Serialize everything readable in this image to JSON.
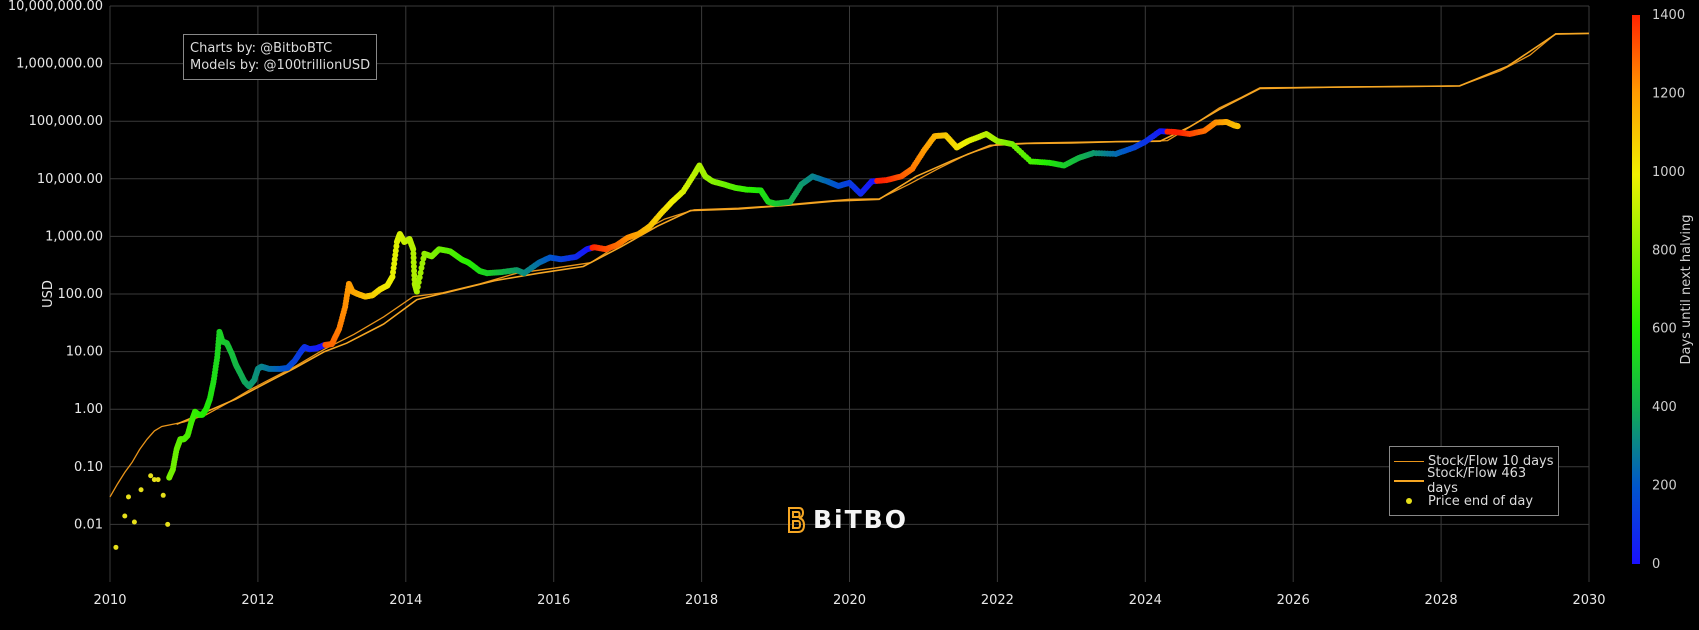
{
  "credits": {
    "line1": "Charts by: @BitboBTC",
    "line2": "Models by: @100trillionUSD"
  },
  "brand": {
    "name": "BiTBO"
  },
  "legend": {
    "items": [
      {
        "label": "Stock/Flow 10 days",
        "symbol": "line-thin",
        "color": "#e8941a"
      },
      {
        "label": "Stock/Flow 463 days",
        "symbol": "line",
        "color": "#f5a623"
      },
      {
        "label": "Price end of day",
        "symbol": "dot",
        "color": "#e6df1a"
      }
    ]
  },
  "chart_data": {
    "type": "scatter",
    "title": "",
    "ylabel": "USD",
    "xlabel": "",
    "yscale": "log",
    "ylim": [
      0.001,
      10000000
    ],
    "xlim": [
      2010,
      2030
    ],
    "y_ticks": [
      "0.01",
      "0.10",
      "1.00",
      "10.00",
      "100.00",
      "1,000.00",
      "10,000.00",
      "100,000.00",
      "1,000,000.00",
      "10,000,000.00"
    ],
    "x_ticks": [
      "2010",
      "2012",
      "2014",
      "2016",
      "2018",
      "2020",
      "2022",
      "2024",
      "2026",
      "2028",
      "2030"
    ],
    "colorbar": {
      "title": "Days until next halving",
      "range": [
        0,
        1400
      ],
      "ticks": [
        "0",
        "200",
        "400",
        "600",
        "800",
        "1000",
        "1200",
        "1400"
      ],
      "colors": [
        "#1a10ff",
        "#0055cc",
        "#11aa55",
        "#22ee00",
        "#88f000",
        "#f0f000",
        "#ff9900",
        "#ff2200"
      ]
    },
    "grid": true,
    "series": [
      {
        "name": "Price end of day",
        "kind": "markers",
        "points": [
          [
            2010.08,
            0.004
          ],
          [
            2010.2,
            0.014
          ],
          [
            2010.25,
            0.03
          ],
          [
            2010.33,
            0.011
          ],
          [
            2010.42,
            0.04
          ],
          [
            2010.55,
            0.07
          ],
          [
            2010.6,
            0.06
          ],
          [
            2010.65,
            0.06
          ],
          [
            2010.72,
            0.032
          ],
          [
            2010.78,
            0.01
          ],
          [
            2010.8,
            0.065
          ],
          [
            2010.85,
            0.09
          ],
          [
            2010.9,
            0.2
          ],
          [
            2010.95,
            0.3
          ],
          [
            2011.0,
            0.3
          ],
          [
            2011.05,
            0.35
          ],
          [
            2011.1,
            0.6
          ],
          [
            2011.15,
            0.9
          ],
          [
            2011.2,
            0.8
          ],
          [
            2011.25,
            0.8
          ],
          [
            2011.3,
            1.0
          ],
          [
            2011.35,
            1.5
          ],
          [
            2011.4,
            3.0
          ],
          [
            2011.45,
            8.0
          ],
          [
            2011.48,
            22.0
          ],
          [
            2011.52,
            15.0
          ],
          [
            2011.58,
            14.0
          ],
          [
            2011.65,
            9.0
          ],
          [
            2011.7,
            6.0
          ],
          [
            2011.75,
            4.5
          ],
          [
            2011.82,
            3.0
          ],
          [
            2011.88,
            2.5
          ],
          [
            2011.95,
            3.2
          ],
          [
            2012.0,
            5.0
          ],
          [
            2012.05,
            5.5
          ],
          [
            2012.15,
            5.0
          ],
          [
            2012.3,
            5.0
          ],
          [
            2012.4,
            5.2
          ],
          [
            2012.5,
            7.0
          ],
          [
            2012.58,
            10.0
          ],
          [
            2012.63,
            12.0
          ],
          [
            2012.7,
            11.0
          ],
          [
            2012.8,
            11.5
          ],
          [
            2012.9,
            13.0
          ],
          [
            2013.0,
            13.5
          ],
          [
            2013.1,
            25.0
          ],
          [
            2013.18,
            60.0
          ],
          [
            2013.23,
            150.0
          ],
          [
            2013.28,
            110.0
          ],
          [
            2013.35,
            100.0
          ],
          [
            2013.45,
            90.0
          ],
          [
            2013.55,
            95.0
          ],
          [
            2013.65,
            120.0
          ],
          [
            2013.75,
            140.0
          ],
          [
            2013.82,
            200.0
          ],
          [
            2013.88,
            800.0
          ],
          [
            2013.92,
            1100.0
          ],
          [
            2013.98,
            800.0
          ],
          [
            2014.05,
            900.0
          ],
          [
            2014.1,
            600.0
          ],
          [
            2014.12,
            150.0
          ],
          [
            2014.15,
            110.0
          ],
          [
            2014.25,
            500.0
          ],
          [
            2014.35,
            450.0
          ],
          [
            2014.45,
            600.0
          ],
          [
            2014.6,
            550.0
          ],
          [
            2014.75,
            400.0
          ],
          [
            2014.85,
            350.0
          ],
          [
            2015.0,
            250.0
          ],
          [
            2015.1,
            230.0
          ],
          [
            2015.3,
            240.0
          ],
          [
            2015.5,
            260.0
          ],
          [
            2015.6,
            230.0
          ],
          [
            2015.8,
            350.0
          ],
          [
            2015.95,
            430.0
          ],
          [
            2016.1,
            400.0
          ],
          [
            2016.3,
            440.0
          ],
          [
            2016.45,
            600.0
          ],
          [
            2016.55,
            650.0
          ],
          [
            2016.7,
            600.0
          ],
          [
            2016.85,
            700.0
          ],
          [
            2017.0,
            950.0
          ],
          [
            2017.15,
            1100.0
          ],
          [
            2017.3,
            1500.0
          ],
          [
            2017.45,
            2500.0
          ],
          [
            2017.6,
            4000.0
          ],
          [
            2017.75,
            6000.0
          ],
          [
            2017.9,
            12000.0
          ],
          [
            2017.97,
            17000.0
          ],
          [
            2018.05,
            11000.0
          ],
          [
            2018.15,
            9000.0
          ],
          [
            2018.3,
            8000.0
          ],
          [
            2018.45,
            7000.0
          ],
          [
            2018.6,
            6500.0
          ],
          [
            2018.8,
            6300.0
          ],
          [
            2018.9,
            4000.0
          ],
          [
            2019.0,
            3700.0
          ],
          [
            2019.2,
            4000.0
          ],
          [
            2019.35,
            8000.0
          ],
          [
            2019.5,
            11000.0
          ],
          [
            2019.7,
            9000.0
          ],
          [
            2019.85,
            7500.0
          ],
          [
            2020.0,
            8500.0
          ],
          [
            2020.15,
            5500.0
          ],
          [
            2020.3,
            9000.0
          ],
          [
            2020.5,
            9500.0
          ],
          [
            2020.7,
            11000.0
          ],
          [
            2020.85,
            15000.0
          ],
          [
            2021.0,
            30000.0
          ],
          [
            2021.15,
            55000.0
          ],
          [
            2021.3,
            57000.0
          ],
          [
            2021.45,
            35000.0
          ],
          [
            2021.6,
            45000.0
          ],
          [
            2021.85,
            60000.0
          ],
          [
            2022.0,
            45000.0
          ],
          [
            2022.2,
            40000.0
          ],
          [
            2022.45,
            20000.0
          ],
          [
            2022.7,
            19000.0
          ],
          [
            2022.9,
            17000.0
          ],
          [
            2023.1,
            23000.0
          ],
          [
            2023.3,
            28000.0
          ],
          [
            2023.6,
            27000.0
          ],
          [
            2023.85,
            35000.0
          ],
          [
            2024.0,
            44000.0
          ],
          [
            2024.2,
            67000.0
          ],
          [
            2024.4,
            65000.0
          ],
          [
            2024.6,
            60000.0
          ],
          [
            2024.8,
            68000.0
          ],
          [
            2024.95,
            95000.0
          ],
          [
            2025.1,
            97000.0
          ],
          [
            2025.2,
            85000.0
          ],
          [
            2025.25,
            82000.0
          ]
        ]
      },
      {
        "name": "Stock/Flow 10 days",
        "kind": "line",
        "points": [
          [
            2010.0,
            0.03
          ],
          [
            2010.1,
            0.05
          ],
          [
            2010.2,
            0.08
          ],
          [
            2010.3,
            0.12
          ],
          [
            2010.4,
            0.2
          ],
          [
            2010.5,
            0.3
          ],
          [
            2010.6,
            0.42
          ],
          [
            2010.7,
            0.5
          ],
          [
            2010.85,
            0.55
          ],
          [
            2011.0,
            0.6
          ],
          [
            2011.3,
            0.8
          ],
          [
            2011.6,
            1.3
          ],
          [
            2011.9,
            2.2
          ],
          [
            2012.2,
            3.5
          ],
          [
            2012.5,
            5.5
          ],
          [
            2012.9,
            11.0
          ],
          [
            2013.3,
            20.0
          ],
          [
            2013.7,
            40.0
          ],
          [
            2014.1,
            90.0
          ],
          [
            2014.5,
            105.0
          ],
          [
            2015.0,
            150.0
          ],
          [
            2015.5,
            230.0
          ],
          [
            2016.0,
            280.0
          ],
          [
            2016.5,
            350.0
          ],
          [
            2017.0,
            900.0
          ],
          [
            2017.5,
            2000.0
          ],
          [
            2017.9,
            2900.0
          ],
          [
            2018.5,
            3100.0
          ],
          [
            2019.0,
            3400.0
          ],
          [
            2019.5,
            3900.0
          ],
          [
            2020.0,
            4400.0
          ],
          [
            2020.4,
            4500.0
          ],
          [
            2020.8,
            8000.0
          ],
          [
            2021.2,
            15000.0
          ],
          [
            2021.6,
            27000.0
          ],
          [
            2022.0,
            40000.0
          ],
          [
            2022.5,
            42000.0
          ],
          [
            2023.0,
            43000.0
          ],
          [
            2023.5,
            44000.0
          ],
          [
            2024.0,
            45000.0
          ],
          [
            2024.3,
            46000.0
          ],
          [
            2024.7,
            95000.0
          ],
          [
            2025.0,
            170000.0
          ],
          [
            2025.3,
            260000.0
          ],
          [
            2025.55,
            380000.0
          ],
          [
            2026.0,
            385000.0
          ],
          [
            2027.0,
            395000.0
          ],
          [
            2028.0,
            405000.0
          ],
          [
            2028.25,
            410000.0
          ],
          [
            2028.8,
            750000.0
          ],
          [
            2029.2,
            1400000.0
          ],
          [
            2029.55,
            3300000.0
          ],
          [
            2030.0,
            3350000.0
          ]
        ]
      },
      {
        "name": "Stock/Flow 463 days",
        "kind": "line",
        "points": [
          [
            2010.9,
            0.55
          ],
          [
            2011.3,
            0.9
          ],
          [
            2011.7,
            1.5
          ],
          [
            2012.1,
            2.8
          ],
          [
            2012.5,
            5.2
          ],
          [
            2012.9,
            10.0
          ],
          [
            2013.2,
            14.0
          ],
          [
            2013.7,
            30.0
          ],
          [
            2014.15,
            80.0
          ],
          [
            2014.6,
            110.0
          ],
          [
            2015.2,
            170.0
          ],
          [
            2015.8,
            230.0
          ],
          [
            2016.4,
            300.0
          ],
          [
            2016.9,
            650.0
          ],
          [
            2017.4,
            1500.0
          ],
          [
            2017.85,
            2800.0
          ],
          [
            2018.5,
            3000.0
          ],
          [
            2019.2,
            3500.0
          ],
          [
            2019.8,
            4100.0
          ],
          [
            2020.4,
            4400.0
          ],
          [
            2020.9,
            11000.0
          ],
          [
            2021.4,
            21000.0
          ],
          [
            2021.9,
            38000.0
          ],
          [
            2022.4,
            41000.0
          ],
          [
            2023.0,
            42000.0
          ],
          [
            2023.6,
            44000.0
          ],
          [
            2024.2,
            45000.0
          ],
          [
            2024.6,
            80000.0
          ],
          [
            2025.0,
            160000.0
          ],
          [
            2025.55,
            370000.0
          ],
          [
            2026.5,
            390000.0
          ],
          [
            2027.5,
            400000.0
          ],
          [
            2028.25,
            410000.0
          ],
          [
            2028.9,
            900000.0
          ],
          [
            2029.55,
            3250000.0
          ],
          [
            2030.0,
            3350000.0
          ]
        ]
      }
    ]
  }
}
